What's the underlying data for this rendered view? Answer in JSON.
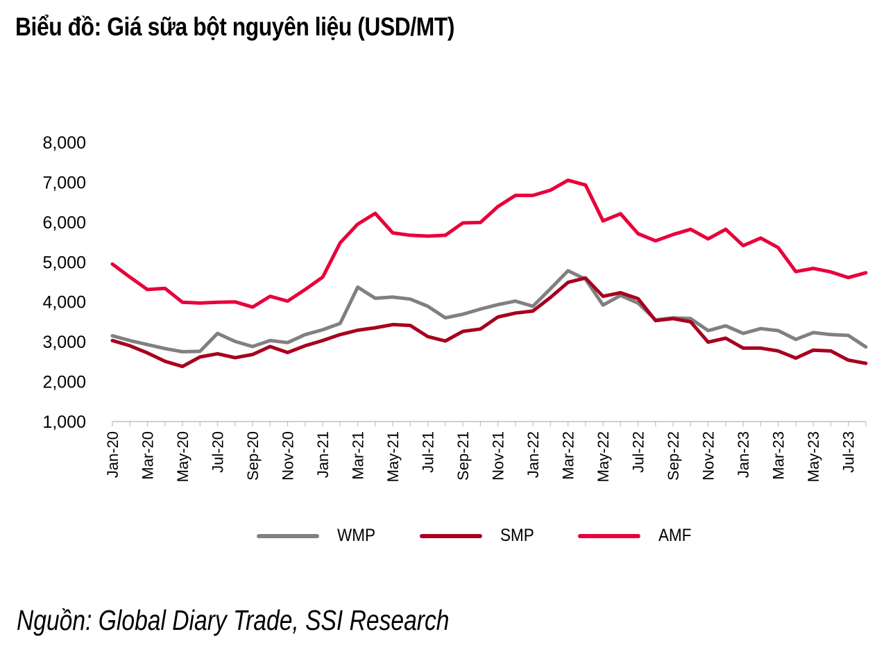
{
  "title": "Biểu đồ: Giá sữa bột nguyên liệu (USD/MT)",
  "source": "Nguồn: Global Diary Trade, SSI Research",
  "chart_data": {
    "type": "line",
    "ylim": [
      1000,
      8000
    ],
    "yticks": [
      "1,000",
      "2,000",
      "3,000",
      "4,000",
      "5,000",
      "6,000",
      "7,000",
      "8,000"
    ],
    "ytick_values": [
      1000,
      2000,
      3000,
      4000,
      5000,
      6000,
      7000,
      8000
    ],
    "x": [
      "Jan-20",
      "Feb-20",
      "Mar-20",
      "Apr-20",
      "May-20",
      "Jun-20",
      "Jul-20",
      "Aug-20",
      "Sep-20",
      "Oct-20",
      "Nov-20",
      "Dec-20",
      "Jan-21",
      "Feb-21",
      "Mar-21",
      "Apr-21",
      "May-21",
      "Jun-21",
      "Jul-21",
      "Aug-21",
      "Sep-21",
      "Oct-21",
      "Nov-21",
      "Dec-21",
      "Jan-22",
      "Feb-22",
      "Mar-22",
      "Apr-22",
      "May-22",
      "Jun-22",
      "Jul-22",
      "Aug-22",
      "Sep-22",
      "Oct-22",
      "Nov-22",
      "Dec-22",
      "Jan-23",
      "Feb-23",
      "Mar-23",
      "Apr-23",
      "May-23",
      "Jun-23",
      "Jul-23",
      "Aug-23"
    ],
    "xtick_labels": [
      "Jan-20",
      "Mar-20",
      "May-20",
      "Jul-20",
      "Sep-20",
      "Nov-20",
      "Jan-21",
      "Mar-21",
      "May-21",
      "Jul-21",
      "Sep-21",
      "Nov-21",
      "Jan-22",
      "Mar-22",
      "May-22",
      "Jul-22",
      "Sep-22",
      "Nov-22",
      "Jan-23",
      "Mar-23",
      "May-23",
      "Jul-23"
    ],
    "grid": false,
    "legend_position": "bottom",
    "series": [
      {
        "name": "WMP",
        "color": "#808080",
        "values": [
          3150,
          3030,
          2930,
          2830,
          2750,
          2760,
          3210,
          3010,
          2880,
          3030,
          2980,
          3180,
          3300,
          3460,
          4370,
          4090,
          4120,
          4070,
          3890,
          3600,
          3690,
          3820,
          3930,
          4020,
          3890,
          4330,
          4780,
          4570,
          3920,
          4160,
          3970,
          3550,
          3600,
          3580,
          3280,
          3400,
          3210,
          3330,
          3280,
          3060,
          3230,
          3180,
          3160,
          2870
        ]
      },
      {
        "name": "SMP",
        "color": "#A6001E",
        "values": [
          3030,
          2900,
          2720,
          2510,
          2380,
          2620,
          2700,
          2600,
          2680,
          2880,
          2730,
          2900,
          3030,
          3180,
          3290,
          3350,
          3430,
          3410,
          3130,
          3020,
          3260,
          3320,
          3620,
          3720,
          3770,
          4110,
          4490,
          4600,
          4140,
          4230,
          4080,
          3530,
          3580,
          3500,
          2990,
          3090,
          2840,
          2840,
          2770,
          2590,
          2790,
          2770,
          2540,
          2460
        ]
      },
      {
        "name": "AMF",
        "color": "#E8003A",
        "values": [
          4950,
          4620,
          4310,
          4340,
          3990,
          3970,
          3990,
          4000,
          3870,
          4140,
          4020,
          4310,
          4620,
          5480,
          5950,
          6220,
          5730,
          5670,
          5650,
          5670,
          5980,
          5990,
          6390,
          6670,
          6670,
          6800,
          7050,
          6930,
          6030,
          6210,
          5710,
          5530,
          5690,
          5820,
          5580,
          5820,
          5410,
          5600,
          5360,
          4760,
          4840,
          4750,
          4610,
          4730
        ]
      }
    ]
  }
}
